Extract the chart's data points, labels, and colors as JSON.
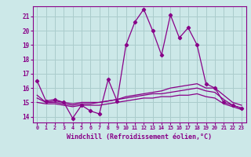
{
  "xlabel": "Windchill (Refroidissement éolien,°C)",
  "bg_color": "#cce8e8",
  "grid_color": "#aacccc",
  "line_color": "#880088",
  "xlim": [
    -0.5,
    23.5
  ],
  "ylim": [
    13.6,
    21.7
  ],
  "xticks": [
    0,
    1,
    2,
    3,
    4,
    5,
    6,
    7,
    8,
    9,
    10,
    11,
    12,
    13,
    14,
    15,
    16,
    17,
    18,
    19,
    20,
    21,
    22,
    23
  ],
  "yticks": [
    14,
    15,
    16,
    17,
    18,
    19,
    20,
    21
  ],
  "lines": [
    {
      "x": [
        0,
        1,
        2,
        3,
        4,
        5,
        6,
        7,
        8,
        9,
        10,
        11,
        12,
        13,
        14,
        15,
        16,
        17,
        18,
        19,
        20,
        21,
        22,
        23
      ],
      "y": [
        16.5,
        15.1,
        15.2,
        15.0,
        13.9,
        14.8,
        14.4,
        14.2,
        16.6,
        15.1,
        19.0,
        20.6,
        21.5,
        20.0,
        18.3,
        21.1,
        19.5,
        20.2,
        19.0,
        16.3,
        16.0,
        15.0,
        14.8,
        14.6
      ],
      "marker": true
    },
    {
      "x": [
        0,
        1,
        2,
        3,
        4,
        5,
        6,
        7,
        8,
        9,
        10,
        11,
        12,
        13,
        14,
        15,
        16,
        17,
        18,
        19,
        20,
        21,
        22,
        23
      ],
      "y": [
        15.5,
        15.0,
        15.1,
        15.0,
        14.9,
        15.0,
        15.0,
        15.0,
        15.1,
        15.2,
        15.4,
        15.5,
        15.6,
        15.7,
        15.8,
        16.0,
        16.1,
        16.2,
        16.3,
        16.0,
        16.0,
        15.5,
        15.0,
        14.8
      ],
      "marker": false
    },
    {
      "x": [
        0,
        1,
        2,
        3,
        4,
        5,
        6,
        7,
        8,
        9,
        10,
        11,
        12,
        13,
        14,
        15,
        16,
        17,
        18,
        19,
        20,
        21,
        22,
        23
      ],
      "y": [
        15.3,
        15.0,
        15.0,
        14.9,
        14.8,
        14.9,
        14.9,
        15.0,
        15.1,
        15.2,
        15.3,
        15.4,
        15.5,
        15.6,
        15.6,
        15.7,
        15.8,
        15.9,
        16.0,
        15.8,
        15.7,
        15.2,
        14.8,
        14.6
      ],
      "marker": false
    },
    {
      "x": [
        0,
        1,
        2,
        3,
        4,
        5,
        6,
        7,
        8,
        9,
        10,
        11,
        12,
        13,
        14,
        15,
        16,
        17,
        18,
        19,
        20,
        21,
        22,
        23
      ],
      "y": [
        15.0,
        14.9,
        14.9,
        14.8,
        14.7,
        14.8,
        14.8,
        14.8,
        14.9,
        15.0,
        15.1,
        15.2,
        15.3,
        15.3,
        15.4,
        15.4,
        15.5,
        15.5,
        15.6,
        15.4,
        15.3,
        14.9,
        14.7,
        14.5
      ],
      "marker": false
    }
  ]
}
